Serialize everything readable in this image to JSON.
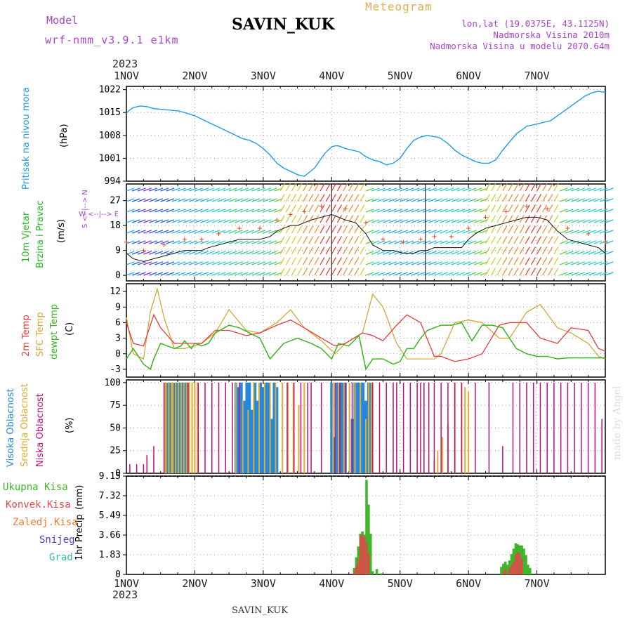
{
  "header": {
    "model_label": "Model",
    "model_name": "wrf-nmm_v3.9.1 e1km",
    "title": "SAVIN_KUK",
    "meteogram": "Meteogram",
    "lonlat": "lon,lat (19.0375E, 43.1125N)",
    "elev": "Nadmorska Visina 2010m",
    "elev_model": "Nadmorska Visina u modelu 2070.64m",
    "year_top": "2023",
    "year_bottom": "2023",
    "footer_station": "SAVIN_KUK",
    "credit": "made by Angel"
  },
  "colors": {
    "pressure": "#1e9be6",
    "temp2m": "#e83c3c",
    "sfc_temp": "#d4a838",
    "dewpoint": "#3ab521",
    "cloud_high": "#2288dd",
    "cloud_mid": "#ddaa33",
    "cloud_low": "#bb1177",
    "precip_total": "#3fb52a",
    "precip_conv": "#e34848",
    "precip_frozen": "#f07a30",
    "snow": "#4444dd",
    "grad": "#33bbaa",
    "label_purple": "#aa44cc",
    "wind_label": "#22bb22"
  },
  "axis_labels": {
    "pressure_name": "Pritisak na nivou mora",
    "pressure_unit": "(hPa)",
    "wind_name_1": "10m Vjetar",
    "wind_name_2": "Brzina i Pravac",
    "wind_unit": "(m/s)",
    "wind_compass": "W <--|--> E",
    "wind_compass_ns": "S <--|--> N",
    "temp_2m": "2m Temp",
    "temp_sfc": "SFC Temp",
    "temp_dew": "dewpt Temp",
    "temp_unit": "(C)",
    "cloud_high": "Visoka Oblacnost",
    "cloud_mid": "Srednja Oblacnost",
    "cloud_low": "Niska Oblacnost",
    "cloud_unit": "(%)",
    "precip_name": "1hr Precip",
    "precip_unit": "(mm)"
  },
  "precip_legend": [
    "Ukupna Kisa",
    "Konvek.Kisa",
    "Zaledj.Kisa",
    "Snijeg",
    "Grad"
  ],
  "chart_data": [
    {
      "type": "line",
      "name": "pressure",
      "x_ticks": [
        "1NOV",
        "2NOV",
        "3NOV",
        "4NOV",
        "5NOV",
        "6NOV",
        "7NOV"
      ],
      "y_ticks": [
        994,
        1001,
        1008,
        1015,
        1022
      ],
      "ylim": [
        994,
        1023
      ],
      "grid": true,
      "series": [
        {
          "x": [
            0,
            0.05,
            0.1,
            0.2,
            0.3,
            0.4,
            0.6,
            0.75,
            0.85,
            1.0,
            1.1,
            1.2,
            1.3,
            1.4,
            1.5,
            1.6,
            1.7,
            1.8,
            1.9,
            2.0,
            2.1,
            2.2,
            2.3,
            2.4,
            2.5,
            2.6,
            2.75,
            2.9,
            3.0,
            3.05,
            3.1,
            3.2,
            3.3,
            3.4,
            3.5,
            3.6,
            3.7,
            3.8,
            3.9,
            4.0,
            4.1,
            4.2,
            4.3,
            4.4,
            4.5,
            4.55,
            4.6,
            4.7,
            4.8,
            4.9,
            5.0,
            5.1,
            5.2,
            5.3,
            5.4,
            5.5,
            5.6,
            5.7,
            5.8,
            5.85,
            5.9,
            6.0,
            6.1,
            6.2,
            6.3,
            6.4,
            6.5,
            6.6,
            6.7,
            6.8,
            6.9,
            6.95,
            7.0
          ],
          "values": [
            1014.8,
            1015.8,
            1016.5,
            1017.0,
            1016.8,
            1016.2,
            1015.8,
            1015.5,
            1015.0,
            1014.0,
            1013.0,
            1012.0,
            1011.0,
            1010.0,
            1009.0,
            1008.0,
            1007.0,
            1006.5,
            1005.5,
            1004.0,
            1002.0,
            999.5,
            998.0,
            997.0,
            996.0,
            995.5,
            998.0,
            1002.5,
            1004.5,
            1004.8,
            1004.8,
            1004.0,
            1003.5,
            1003.0,
            1001.5,
            1000.5,
            1000.0,
            999.0,
            999.5,
            1001.0,
            1004.0,
            1006.5,
            1007.5,
            1008.0,
            1007.6,
            1007.5,
            1007.0,
            1005.5,
            1003.5,
            1002.0,
            1001.0,
            1000.0,
            999.5,
            999.5,
            1000.5,
            1003.5,
            1006.0,
            1008.5,
            1010.0,
            1010.8,
            1011.0,
            1011.5,
            1012.0,
            1012.5,
            1014.0,
            1015.5,
            1017.0,
            1018.5,
            1020.0,
            1021.0,
            1021.5,
            1021.3,
            1021.2
          ]
        }
      ]
    },
    {
      "type": "line",
      "name": "wind",
      "x_ticks": [
        "1NOV",
        "2NOV",
        "3NOV",
        "4NOV",
        "5NOV",
        "6NOV",
        "7NOV"
      ],
      "y_ticks": [
        0,
        9,
        18,
        27
      ],
      "ylim": [
        -2,
        33
      ],
      "grid": true,
      "series": [
        {
          "x": [
            0,
            0.1,
            0.25,
            0.4,
            0.55,
            0.7,
            0.85,
            1.0,
            1.1,
            1.2,
            1.35,
            1.5,
            1.65,
            1.8,
            1.95,
            2.1,
            2.2,
            2.3,
            2.4,
            2.5,
            2.6,
            2.7,
            2.85,
            3.0,
            3.2,
            3.35,
            3.5,
            3.6,
            3.75,
            3.9,
            4.05,
            4.2,
            4.3,
            4.4,
            4.5,
            4.6,
            4.75,
            4.9,
            5.0,
            5.1,
            5.25,
            5.4,
            5.55,
            5.7,
            5.85,
            6.0,
            6.15,
            6.3,
            6.45,
            6.6,
            6.75,
            6.9,
            7.0
          ],
          "values": [
            8,
            6,
            5,
            6,
            7,
            8,
            9,
            9,
            9,
            10,
            11,
            12,
            13,
            13,
            13,
            14,
            16,
            17,
            18,
            18,
            19,
            20,
            21,
            22,
            20,
            19,
            15,
            11,
            9,
            9,
            8,
            8,
            9,
            9,
            10,
            10,
            10,
            10,
            13,
            15,
            17,
            18,
            19,
            20,
            21,
            21,
            20,
            16,
            13,
            12,
            11,
            10,
            8
          ]
        }
      ]
    },
    {
      "type": "line",
      "name": "temperature",
      "x_ticks": [
        "1NOV",
        "2NOV",
        "3NOV",
        "4NOV",
        "5NOV",
        "6NOV",
        "7NOV"
      ],
      "y_ticks": [
        -3,
        0,
        3,
        6,
        9,
        12
      ],
      "ylim": [
        -4.5,
        13.5
      ],
      "grid": true,
      "series": [
        {
          "name": "2m Temp",
          "x": [
            0,
            0.1,
            0.25,
            0.4,
            0.5,
            0.7,
            0.85,
            1.0,
            1.1,
            1.3,
            1.5,
            1.75,
            1.95,
            2.2,
            2.4,
            2.6,
            2.85,
            3.05,
            3.2,
            3.45,
            3.6,
            3.75,
            3.95,
            4.1,
            4.3,
            4.5,
            4.6,
            4.8,
            5.0,
            5.2,
            5.45,
            5.6,
            5.85,
            6.05,
            6.3,
            6.5,
            6.75,
            6.9,
            7.0
          ],
          "values": [
            6,
            2,
            1.5,
            7.5,
            5,
            2,
            2,
            2,
            2,
            4.5,
            4.5,
            3.5,
            4,
            5.5,
            6.5,
            5,
            3,
            1.5,
            2,
            4,
            3.5,
            2.5,
            5.5,
            7.5,
            6,
            -0.5,
            -0.5,
            -1.5,
            -1,
            0,
            5.5,
            6,
            6,
            3,
            2,
            5,
            4.5,
            1,
            0.5
          ]
        },
        {
          "name": "SFC Temp",
          "x": [
            0,
            0.1,
            0.25,
            0.35,
            0.45,
            0.55,
            0.7,
            0.85,
            1.0,
            1.1,
            1.3,
            1.5,
            1.75,
            1.95,
            2.2,
            2.4,
            2.6,
            2.85,
            3.05,
            3.2,
            3.45,
            3.6,
            3.75,
            3.95,
            4.1,
            4.3,
            4.5,
            4.6,
            4.8,
            5.0,
            5.2,
            5.45,
            5.6,
            5.85,
            6.05,
            6.3,
            6.5,
            6.75,
            6.9,
            7.0
          ],
          "values": [
            7,
            0,
            -1,
            8,
            12.5,
            7,
            1,
            1,
            1.5,
            2,
            4,
            8.5,
            4.5,
            4,
            6,
            8.5,
            5,
            2.5,
            0,
            2,
            4,
            11.5,
            9,
            2,
            -1,
            -1,
            -1,
            0,
            6,
            6.5,
            6,
            3,
            3,
            8,
            9.5,
            5,
            4,
            2,
            -0.5,
            -1
          ]
        },
        {
          "name": "dewpt Temp",
          "x": [
            0,
            0.1,
            0.2,
            0.25,
            0.35,
            0.4,
            0.5,
            0.6,
            0.7,
            0.8,
            0.85,
            0.95,
            1.0,
            1.1,
            1.2,
            1.3,
            1.5,
            1.65,
            1.8,
            1.95,
            2.1,
            2.3,
            2.5,
            2.7,
            2.85,
            3.0,
            3.1,
            3.25,
            3.4,
            3.5,
            3.6,
            3.75,
            3.9,
            4.0,
            4.1,
            4.2,
            4.3,
            4.4,
            4.5,
            4.6,
            4.75,
            4.9,
            5.05,
            5.2,
            5.35,
            5.5,
            5.6,
            5.7,
            5.85,
            6.0,
            6.15,
            6.3,
            6.45,
            6.6,
            6.75,
            6.9,
            7.0
          ],
          "values": [
            -1,
            1,
            -1,
            -2,
            -3,
            -1,
            2,
            1.5,
            1,
            1.5,
            2.5,
            1,
            2,
            1.5,
            2,
            4,
            5.5,
            5,
            4,
            3,
            -1,
            2,
            3,
            2,
            1,
            -1,
            2,
            1.5,
            3.5,
            -3,
            -1,
            -1,
            -2,
            -1.5,
            1,
            1,
            3,
            4.5,
            5,
            5.5,
            5.5,
            6,
            2.5,
            5.5,
            5.5,
            5,
            3,
            1,
            0,
            -0.5,
            -0.5,
            -1,
            -0.8,
            -0.8,
            -0.8,
            -0.8,
            -0.8
          ]
        }
      ]
    },
    {
      "type": "bar",
      "name": "cloud_cover",
      "x_ticks": [
        "1NOV",
        "2NOV",
        "3NOV",
        "4NOV",
        "5NOV",
        "6NOV",
        "7NOV"
      ],
      "y_ticks": [
        0,
        25,
        50,
        75,
        100
      ],
      "ylim": [
        0,
        103
      ],
      "grid": true,
      "series": [
        {
          "name": "Visoka Oblacnost",
          "x": [
            0.6,
            0.64,
            0.7,
            0.74,
            0.78,
            0.82,
            0.86,
            0.9,
            1.6,
            1.64,
            1.68,
            1.72,
            1.76,
            1.8,
            1.84,
            1.88,
            1.92,
            1.96,
            2.0,
            2.04,
            2.08,
            2.12,
            2.16,
            2.2,
            3.0,
            3.04,
            3.08,
            3.12,
            3.16,
            3.2,
            3.3,
            3.34,
            3.38,
            3.42,
            3.46,
            3.5,
            3.54,
            3.58
          ],
          "values": [
            100,
            100,
            100,
            100,
            100,
            100,
            100,
            100,
            100,
            95,
            100,
            80,
            100,
            100,
            70,
            100,
            80,
            100,
            95,
            100,
            100,
            60,
            100,
            95,
            100,
            40,
            100,
            100,
            100,
            100,
            60,
            100,
            100,
            100,
            100,
            80,
            100,
            100
          ]
        },
        {
          "name": "Srednja Oblacnost",
          "x": [
            0.56,
            0.58,
            0.62,
            0.66,
            0.68,
            0.72,
            0.76,
            0.8,
            0.84,
            0.88,
            0.92,
            0.96,
            1.0,
            1.04,
            1.6,
            1.7,
            1.78,
            1.86,
            1.94,
            2.02,
            2.1,
            2.18,
            2.28,
            2.36,
            2.44,
            2.52,
            2.6,
            3.02,
            3.1,
            3.18,
            3.26,
            3.34,
            3.42,
            3.5,
            3.54,
            3.58,
            4.5,
            4.55,
            4.62,
            4.7,
            4.8,
            4.9,
            4.95,
            5.0
          ],
          "values": [
            100,
            100,
            100,
            100,
            100,
            100,
            100,
            100,
            100,
            100,
            100,
            100,
            100,
            100,
            100,
            80,
            70,
            100,
            100,
            100,
            100,
            100,
            100,
            100,
            100,
            75,
            100,
            100,
            100,
            100,
            100,
            100,
            100,
            60,
            100,
            100,
            15,
            25,
            40,
            55,
            100,
            100,
            95,
            90
          ]
        },
        {
          "name": "Niska Oblacnost",
          "x": [
            0.05,
            0.15,
            0.25,
            0.3,
            0.4,
            0.55,
            0.9,
            1.05,
            1.15,
            1.25,
            1.35,
            1.45,
            1.55,
            1.65,
            2.35,
            2.45,
            2.55,
            2.65,
            2.7,
            2.85,
            3.05,
            3.12,
            3.2,
            3.3,
            3.6,
            3.7,
            3.8,
            3.9,
            3.95,
            4.05,
            4.15,
            4.25,
            4.3,
            4.35,
            4.42,
            4.5,
            4.6,
            4.7,
            4.8,
            4.9,
            5.1,
            5.3,
            5.5,
            5.65,
            5.75,
            5.85,
            5.95,
            6.05,
            6.15,
            6.25,
            6.35,
            6.45,
            6.55,
            6.65,
            6.75,
            6.85,
            6.95
          ],
          "values": [
            10,
            10,
            10,
            20,
            30,
            100,
            100,
            100,
            100,
            100,
            100,
            100,
            100,
            100,
            100,
            100,
            100,
            100,
            100,
            100,
            100,
            100,
            100,
            100,
            100,
            100,
            100,
            100,
            100,
            100,
            100,
            100,
            100,
            100,
            100,
            100,
            100,
            100,
            100,
            100,
            100,
            100,
            30,
            100,
            100,
            100,
            100,
            100,
            100,
            100,
            100,
            100,
            100,
            100,
            100,
            100,
            60
          ]
        }
      ]
    },
    {
      "type": "bar",
      "name": "precipitation",
      "x_ticks": [
        "1NOV",
        "2NOV",
        "3NOV",
        "4NOV",
        "5NOV",
        "6NOV",
        "7NOV"
      ],
      "y_ticks": [
        0,
        1.83,
        3.66,
        5.49,
        7.32,
        9.15
      ],
      "ylim": [
        0,
        9.15
      ],
      "grid": true,
      "series": [
        {
          "name": "Ukupna Kisa",
          "x": [
            3.33,
            3.36,
            3.39,
            3.42,
            3.45,
            3.48,
            3.51,
            3.54,
            3.57,
            3.6,
            3.66,
            3.72,
            5.48,
            5.51,
            5.54,
            5.57,
            5.6,
            5.63,
            5.66,
            5.69,
            5.72,
            5.75,
            5.78,
            5.81,
            5.84,
            5.87,
            5.9
          ],
          "values": [
            0.6,
            1.6,
            2.6,
            3.8,
            4.0,
            3.7,
            8.8,
            6.5,
            3.8,
            0.3,
            0.5,
            0.1,
            0.7,
            1.0,
            1.2,
            0.9,
            1.3,
            1.9,
            2.4,
            2.9,
            2.8,
            2.7,
            2.7,
            2.4,
            1.8,
            0.9,
            0.6
          ]
        },
        {
          "name": "Konvek.Kisa",
          "x": [
            3.33,
            3.36,
            3.39,
            3.42,
            3.45,
            3.48,
            3.51,
            3.54,
            5.51,
            5.54,
            5.6,
            5.63,
            5.66,
            5.69,
            5.72,
            5.75,
            5.78
          ],
          "values": [
            0.3,
            0.8,
            1.4,
            3.6,
            3.7,
            3.5,
            3.0,
            2.0,
            0.3,
            0.5,
            0.6,
            0.9,
            1.2,
            1.9,
            2.1,
            2.0,
            1.5
          ]
        }
      ]
    }
  ]
}
